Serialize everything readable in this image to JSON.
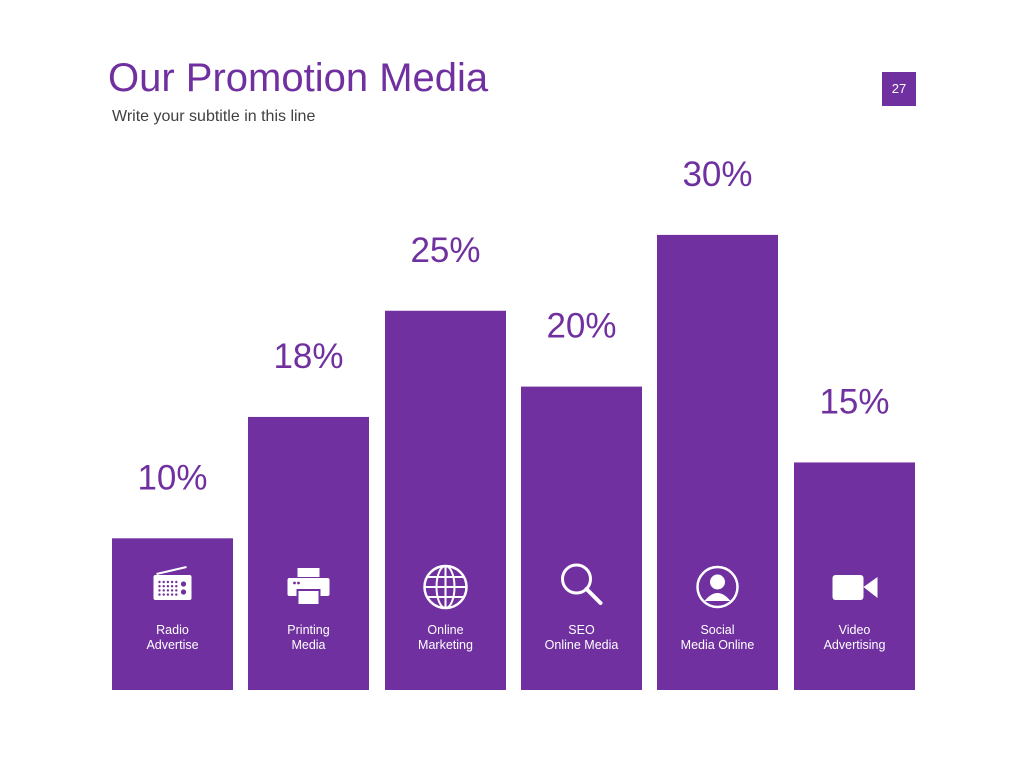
{
  "slide": {
    "title": "Our Promotion Media",
    "subtitle": "Write your subtitle in this line",
    "page_number": "27"
  },
  "colors": {
    "accent": "#7030a0",
    "bar_text": "#ffffff",
    "subtitle_text": "#404040"
  },
  "chart_data": {
    "type": "bar",
    "categories": [
      [
        "Radio",
        "Advertise"
      ],
      [
        "Printing",
        "Media"
      ],
      [
        "Online",
        "Marketing"
      ],
      [
        "SEO",
        "Online Media"
      ],
      [
        "Social",
        "Media Online"
      ],
      [
        "Video",
        "Advertising"
      ]
    ],
    "values": [
      10,
      18,
      25,
      20,
      30,
      15
    ],
    "value_labels": [
      "10%",
      "18%",
      "25%",
      "20%",
      "30%",
      "15%"
    ],
    "icons": [
      "radio-icon",
      "printer-icon",
      "globe-icon",
      "magnifier-icon",
      "user-icon",
      "video-camera-icon"
    ],
    "unit": "%",
    "title": "",
    "xlabel": "",
    "ylabel": "",
    "ylim": [
      0,
      30
    ],
    "grid": false,
    "legend": "none"
  }
}
